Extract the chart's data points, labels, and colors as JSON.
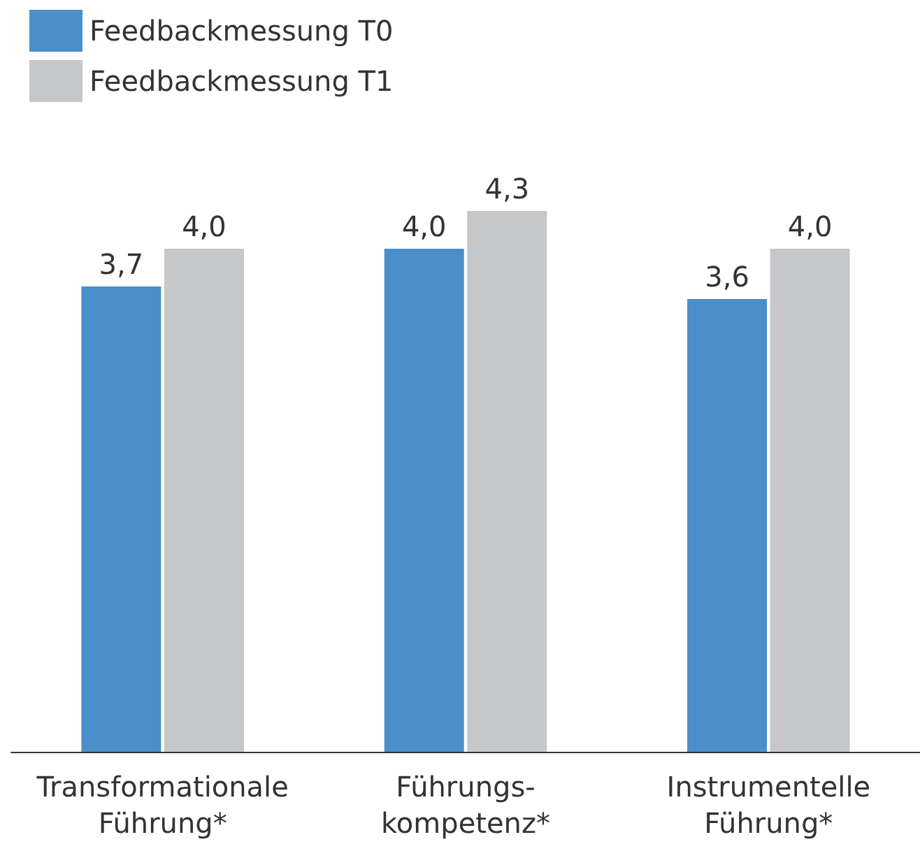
{
  "chart_data": {
    "type": "bar",
    "categories": [
      "Transformationale\nFührung*",
      "Führungs-\nkompetenz*",
      "Instrumentelle\nFührung*"
    ],
    "series": [
      {
        "name": "Feedbackmessung T0",
        "color": "#4a8fc9",
        "values": [
          3.7,
          4.0,
          3.6
        ],
        "value_labels": [
          "3,7",
          "4,0",
          "3,6"
        ]
      },
      {
        "name": "Feedbackmessung T1",
        "color": "#c6c7c9",
        "values": [
          4.0,
          4.3,
          4.0
        ],
        "value_labels": [
          "4,0",
          "4,3",
          "4,0"
        ]
      }
    ],
    "grid": false,
    "legend": "top left",
    "tick_labels": "x"
  }
}
